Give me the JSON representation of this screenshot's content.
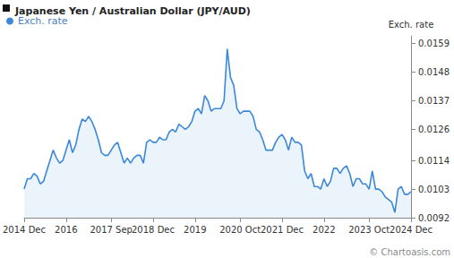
{
  "chart_data": {
    "type": "area",
    "title": "Japanese Yen / Australian Dollar (JPY/AUD)",
    "y_label": "Exch. rate",
    "annotations": [
      "© Chartoasis.com"
    ],
    "legend": "top-left",
    "grid": false,
    "marker": "none",
    "categories": [
      "2014 Dec",
      null,
      null,
      null,
      null,
      null,
      null,
      null,
      null,
      null,
      null,
      null,
      null,
      "2016",
      null,
      null,
      null,
      null,
      null,
      null,
      null,
      null,
      null,
      null,
      null,
      null,
      null,
      "2017 Sep",
      null,
      null,
      null,
      null,
      null,
      null,
      null,
      null,
      null,
      null,
      null,
      null,
      "2018 Dec",
      null,
      null,
      null,
      null,
      null,
      null,
      null,
      null,
      null,
      null,
      null,
      null,
      "2019",
      null,
      null,
      null,
      null,
      null,
      null,
      null,
      null,
      null,
      null,
      null,
      null,
      null,
      "2020 Oct",
      null,
      null,
      null,
      null,
      null,
      null,
      null,
      null,
      null,
      null,
      null,
      null,
      "2021 Dec",
      null,
      null,
      null,
      null,
      null,
      null,
      null,
      null,
      null,
      null,
      null,
      null,
      "2022",
      null,
      null,
      null,
      null,
      null,
      null,
      null,
      null,
      null,
      null,
      null,
      null,
      null,
      "2023 Oct",
      null,
      null,
      null,
      null,
      null,
      null,
      null,
      null,
      null,
      null,
      null,
      null,
      "2024 Dec"
    ],
    "series": [
      {
        "name": "Exch. rate",
        "color": "#3b87d8",
        "values": [
          0.0103,
          0.0107,
          0.0107,
          0.0109,
          0.0108,
          0.0105,
          0.0106,
          0.011,
          0.0114,
          0.0118,
          0.0115,
          0.0113,
          0.0114,
          0.0118,
          0.0122,
          0.0117,
          0.012,
          0.0126,
          0.013,
          0.0129,
          0.0131,
          0.0129,
          0.0126,
          0.0122,
          0.0117,
          0.0116,
          0.0116,
          0.0118,
          0.012,
          0.0121,
          0.0117,
          0.0113,
          0.0115,
          0.0113,
          0.0115,
          0.0116,
          0.0116,
          0.0113,
          0.0121,
          0.0122,
          0.0121,
          0.0121,
          0.0123,
          0.0122,
          0.0122,
          0.0125,
          0.0126,
          0.0125,
          0.0128,
          0.0127,
          0.0126,
          0.0127,
          0.0129,
          0.0133,
          0.0134,
          0.0132,
          0.0139,
          0.0137,
          0.0133,
          0.0134,
          0.0134,
          0.0134,
          0.0137,
          0.0157,
          0.0146,
          0.0143,
          0.0134,
          0.0132,
          0.0133,
          0.0133,
          0.0133,
          0.0131,
          0.0126,
          0.0125,
          0.0122,
          0.0118,
          0.0118,
          0.0118,
          0.0121,
          0.0123,
          0.0124,
          0.0122,
          0.0118,
          0.0123,
          0.0121,
          0.0121,
          0.012,
          0.011,
          0.0107,
          0.0109,
          0.0104,
          0.0104,
          0.0103,
          0.0107,
          0.0104,
          0.0106,
          0.0111,
          0.0111,
          0.0109,
          0.0111,
          0.0112,
          0.0109,
          0.0104,
          0.0107,
          0.0107,
          0.0105,
          0.0105,
          0.0103,
          0.011,
          0.0103,
          0.0103,
          0.0102,
          0.01,
          0.0099,
          0.0098,
          0.0094,
          0.0103,
          0.0104,
          0.0101,
          0.0101,
          0.0102
        ]
      }
    ],
    "ylim": [
      0.0092,
      0.0162
    ],
    "yticks": [
      0.0092,
      0.0103,
      0.0114,
      0.0126,
      0.0137,
      0.0148,
      0.0159
    ]
  }
}
